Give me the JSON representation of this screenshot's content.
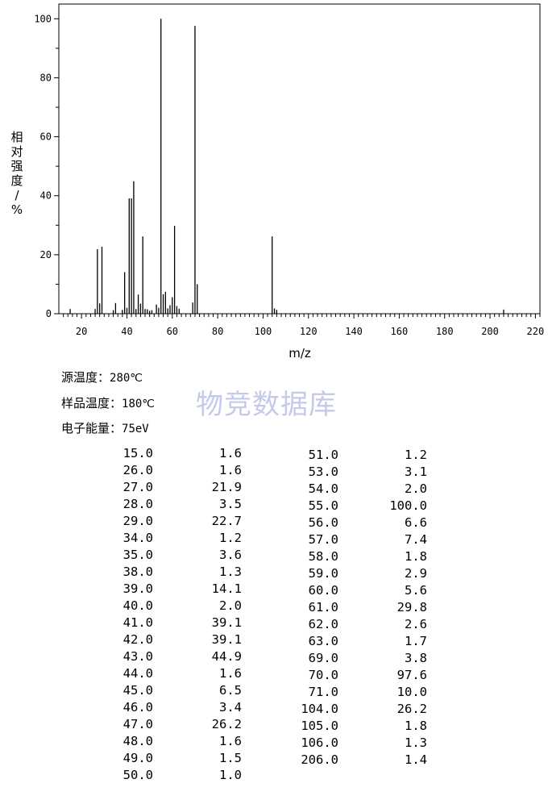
{
  "chart_data": {
    "type": "bar",
    "xlabel": "m/z",
    "ylabel": "相对强度/%",
    "xlim": [
      10,
      222
    ],
    "ylim": [
      0,
      105
    ],
    "xticks": [
      20,
      40,
      60,
      80,
      100,
      120,
      140,
      160,
      180,
      200,
      220
    ],
    "yticks": [
      0,
      20,
      40,
      60,
      80,
      100
    ],
    "grid": false,
    "peaks": [
      {
        "x": 15,
        "y": 1.6
      },
      {
        "x": 26,
        "y": 1.6
      },
      {
        "x": 27,
        "y": 21.9
      },
      {
        "x": 28,
        "y": 3.5
      },
      {
        "x": 29,
        "y": 22.7
      },
      {
        "x": 34,
        "y": 1.2
      },
      {
        "x": 35,
        "y": 3.6
      },
      {
        "x": 38,
        "y": 1.3
      },
      {
        "x": 39,
        "y": 14.1
      },
      {
        "x": 40,
        "y": 2.0
      },
      {
        "x": 41,
        "y": 39.1
      },
      {
        "x": 42,
        "y": 39.1
      },
      {
        "x": 43,
        "y": 44.9
      },
      {
        "x": 44,
        "y": 1.6
      },
      {
        "x": 45,
        "y": 6.5
      },
      {
        "x": 46,
        "y": 3.4
      },
      {
        "x": 47,
        "y": 26.2
      },
      {
        "x": 48,
        "y": 1.6
      },
      {
        "x": 49,
        "y": 1.5
      },
      {
        "x": 50,
        "y": 1.0
      },
      {
        "x": 51,
        "y": 1.2
      },
      {
        "x": 53,
        "y": 3.1
      },
      {
        "x": 54,
        "y": 2.0
      },
      {
        "x": 55,
        "y": 100.0
      },
      {
        "x": 56,
        "y": 6.6
      },
      {
        "x": 57,
        "y": 7.4
      },
      {
        "x": 58,
        "y": 1.8
      },
      {
        "x": 59,
        "y": 2.9
      },
      {
        "x": 60,
        "y": 5.6
      },
      {
        "x": 61,
        "y": 29.8
      },
      {
        "x": 62,
        "y": 2.6
      },
      {
        "x": 63,
        "y": 1.7
      },
      {
        "x": 69,
        "y": 3.8
      },
      {
        "x": 70,
        "y": 97.6
      },
      {
        "x": 71,
        "y": 10.0
      },
      {
        "x": 104,
        "y": 26.2
      },
      {
        "x": 105,
        "y": 1.8
      },
      {
        "x": 106,
        "y": 1.3
      },
      {
        "x": 206,
        "y": 1.4
      }
    ]
  },
  "info": {
    "source_temp_label": "源温度：",
    "source_temp_value": "280℃",
    "sample_temp_label": "样品温度：",
    "sample_temp_value": "180℃",
    "electron_energy_label": "电子能量：",
    "electron_energy_value": "75eV"
  },
  "watermark": "物竞数据库",
  "table_left": [
    [
      "15.0",
      "1.6"
    ],
    [
      "26.0",
      "1.6"
    ],
    [
      "27.0",
      "21.9"
    ],
    [
      "28.0",
      "3.5"
    ],
    [
      "29.0",
      "22.7"
    ],
    [
      "34.0",
      "1.2"
    ],
    [
      "35.0",
      "3.6"
    ],
    [
      "38.0",
      "1.3"
    ],
    [
      "39.0",
      "14.1"
    ],
    [
      "40.0",
      "2.0"
    ],
    [
      "41.0",
      "39.1"
    ],
    [
      "42.0",
      "39.1"
    ],
    [
      "43.0",
      "44.9"
    ],
    [
      "44.0",
      "1.6"
    ],
    [
      "45.0",
      "6.5"
    ],
    [
      "46.0",
      "3.4"
    ],
    [
      "47.0",
      "26.2"
    ],
    [
      "48.0",
      "1.6"
    ],
    [
      "49.0",
      "1.5"
    ],
    [
      "50.0",
      "1.0"
    ]
  ],
  "table_right": [
    [
      "51.0",
      "1.2"
    ],
    [
      "53.0",
      "3.1"
    ],
    [
      "54.0",
      "2.0"
    ],
    [
      "55.0",
      "100.0"
    ],
    [
      "56.0",
      "6.6"
    ],
    [
      "57.0",
      "7.4"
    ],
    [
      "58.0",
      "1.8"
    ],
    [
      "59.0",
      "2.9"
    ],
    [
      "60.0",
      "5.6"
    ],
    [
      "61.0",
      "29.8"
    ],
    [
      "62.0",
      "2.6"
    ],
    [
      "63.0",
      "1.7"
    ],
    [
      "69.0",
      "3.8"
    ],
    [
      "70.0",
      "97.6"
    ],
    [
      "71.0",
      "10.0"
    ],
    [
      "104.0",
      "26.2"
    ],
    [
      "105.0",
      "1.8"
    ],
    [
      "106.0",
      "1.3"
    ],
    [
      "206.0",
      "1.4"
    ]
  ]
}
